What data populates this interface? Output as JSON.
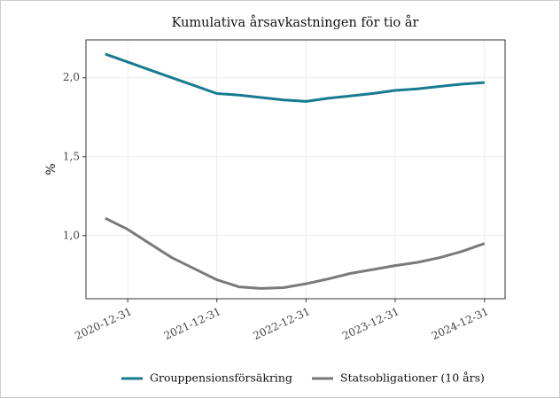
{
  "chart_data": {
    "type": "line",
    "title": "Kumulativa årsavkastningen för tio år",
    "y_label": "%",
    "x": [
      "2020-09-30",
      "2020-12-31",
      "2021-03-31",
      "2021-06-30",
      "2021-09-30",
      "2021-12-31",
      "2022-03-31",
      "2022-06-30",
      "2022-09-30",
      "2022-12-31",
      "2023-03-31",
      "2023-06-30",
      "2023-09-30",
      "2023-12-31",
      "2024-03-31",
      "2024-06-30",
      "2024-09-30",
      "2024-12-31"
    ],
    "series": [
      {
        "name": "Grouppensionsförsäkring",
        "color": "#177b8f",
        "values": [
          2.15,
          2.1,
          2.05,
          2.0,
          1.95,
          1.9,
          1.89,
          1.875,
          1.86,
          1.85,
          1.87,
          1.885,
          1.9,
          1.92,
          1.93,
          1.945,
          1.96,
          1.97
        ]
      },
      {
        "name": "Statsobligationer (10 års)",
        "color": "#7a7a7a",
        "values": [
          1.11,
          1.04,
          0.95,
          0.86,
          0.79,
          0.72,
          0.675,
          0.665,
          0.67,
          0.695,
          0.725,
          0.76,
          0.785,
          0.81,
          0.83,
          0.86,
          0.9,
          0.95
        ]
      }
    ],
    "xlim": [
      "2020-07-13",
      "2025-03-25"
    ],
    "xticks": [
      "2020-12-31",
      "2021-12-31",
      "2022-12-31",
      "2023-12-31",
      "2024-12-31"
    ],
    "ylim": [
      0.6,
      2.24
    ],
    "yticks": [
      {
        "value": 1,
        "label": "1,0"
      },
      {
        "value": 1.5,
        "label": "1,5"
      },
      {
        "value": 2,
        "label": "2,0"
      }
    ],
    "grid": true,
    "legend": "bottom"
  }
}
